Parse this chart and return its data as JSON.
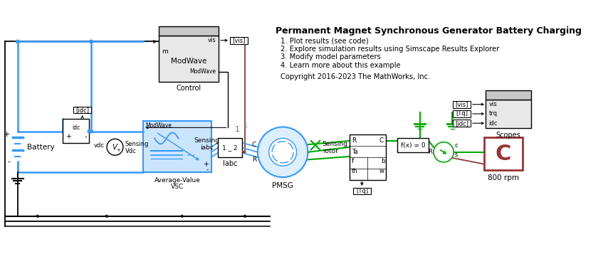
{
  "title": "Permanent Magnet Synchronous Generator Battery Charging",
  "items": [
    "1. Plot results (see code)",
    "2. Explore simulation results using Simscape Results Explorer",
    "3. Modify model parameters",
    "4. Learn more about this example"
  ],
  "copyright": "Copyright 2016-2023 The MathWorks, Inc.",
  "bg_color": "#ffffff",
  "blue": "#4da6ff",
  "dark_blue": "#0066cc",
  "green": "#00aa00",
  "red_brown": "#993333",
  "wire_blue": "#3399ff",
  "wire_black": "#111111",
  "block_light_gray": "#e8e8e8",
  "block_mid_gray": "#c8c8c8",
  "block_dark_gray": "#aaaaaa",
  "light_blue_fill": "#cce5ff",
  "pmsg_fill": "#ddeeff",
  "scope_fill": "#f0f0f0"
}
